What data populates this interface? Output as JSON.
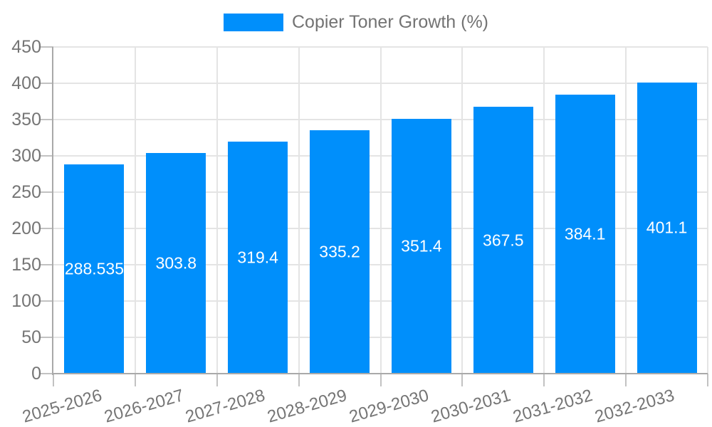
{
  "legend": {
    "label": "Copier Toner Growth (%)"
  },
  "colors": {
    "bar": "#008FFB",
    "grid": "#e4e4e4",
    "axis": "#a9a9a9",
    "tick_mark": "#c2c2c2",
    "label_text": "#757575",
    "bar_value_text": "#ffffff"
  },
  "chart_data": {
    "type": "bar",
    "title": "Copier Toner Growth (%)",
    "categories": [
      "2025-2026",
      "2026-2027",
      "2027-2028",
      "2028-2029",
      "2029-2030",
      "2030-2031",
      "2031-2032",
      "2032-2033"
    ],
    "values": [
      288.535,
      303.8,
      319.4,
      335.2,
      351.4,
      367.5,
      384.1,
      401.1
    ],
    "value_labels": [
      "288.535",
      "303.8",
      "319.4",
      "335.2",
      "351.4",
      "367.5",
      "384.1",
      "401.1"
    ],
    "series_name": "Copier Toner Growth (%)",
    "xlabel": "",
    "ylabel": "",
    "ylim": [
      0,
      450
    ],
    "ytick_step": 50,
    "ytick_labels": [
      "0",
      "50",
      "100",
      "150",
      "200",
      "250",
      "300",
      "350",
      "400",
      "450"
    ],
    "grid": true,
    "legend_position": "top",
    "value_label_position": "inside-middle"
  }
}
